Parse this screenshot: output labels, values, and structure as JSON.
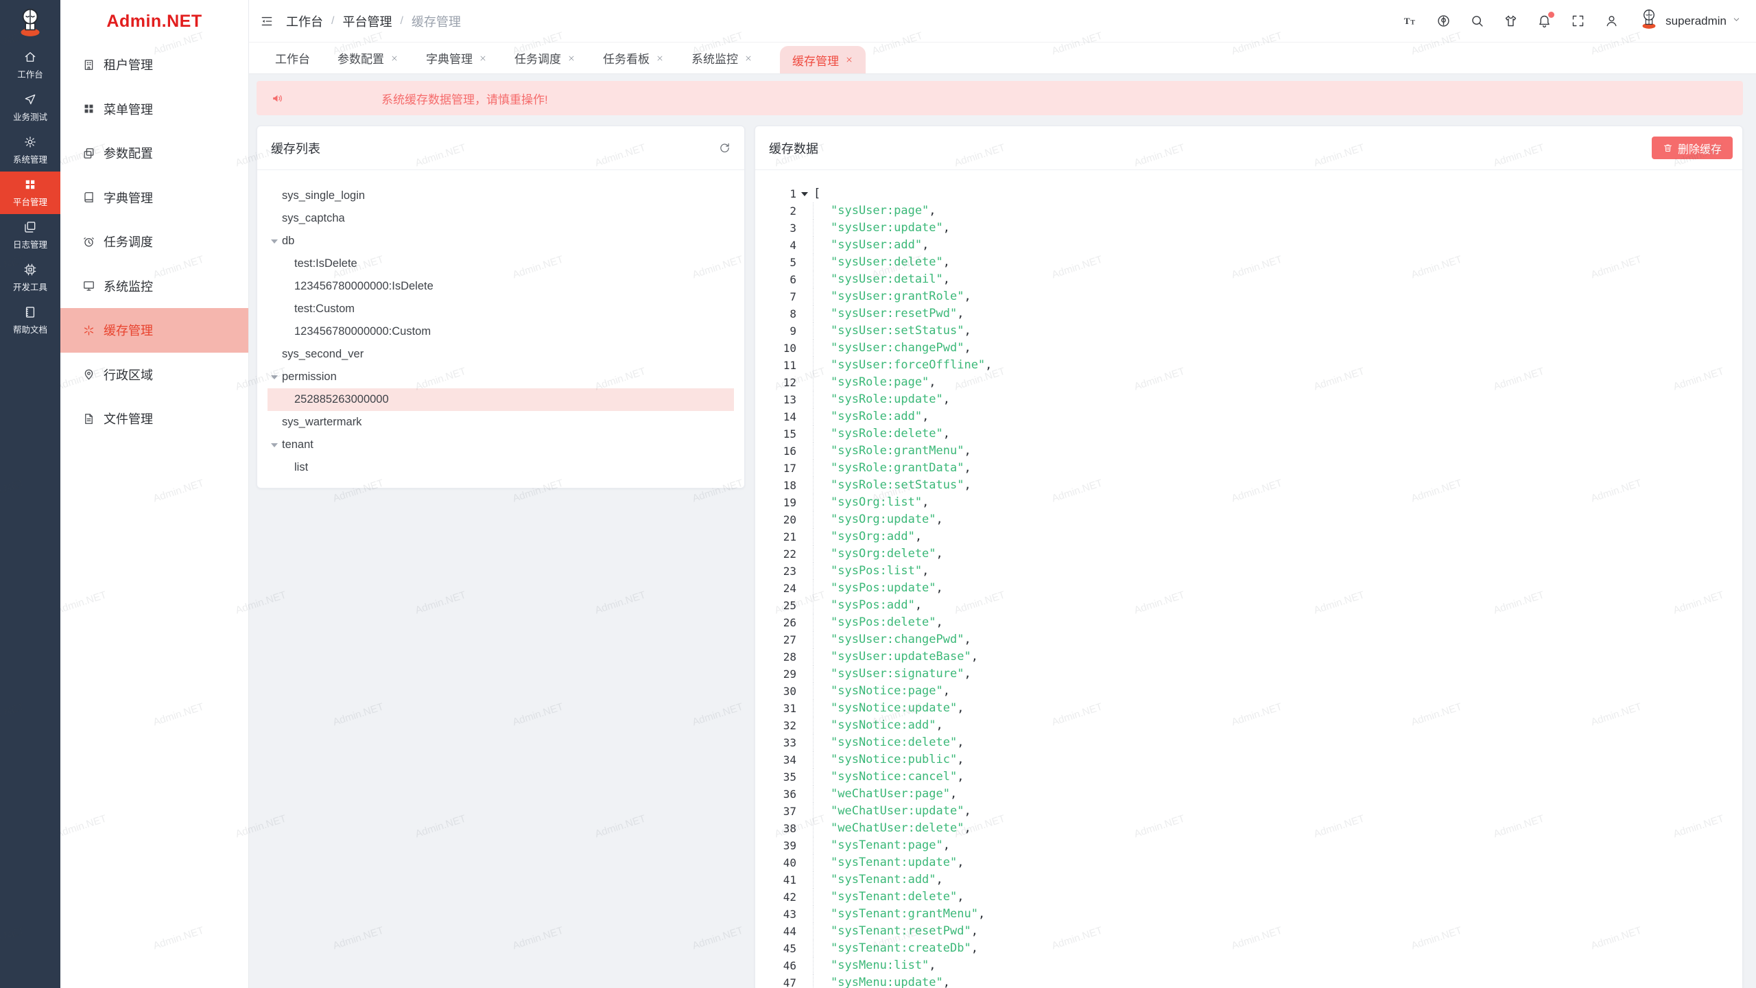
{
  "brand": {
    "logo_text": "Admin.NET"
  },
  "watermark": {
    "text": "Admin.NET"
  },
  "rail": {
    "items": [
      {
        "label": "工作台",
        "icon": "home",
        "active": false
      },
      {
        "label": "业务测试",
        "icon": "send",
        "active": false
      },
      {
        "label": "系统管理",
        "icon": "gear",
        "active": false
      },
      {
        "label": "平台管理",
        "icon": "grid",
        "active": true
      },
      {
        "label": "日志管理",
        "icon": "logs",
        "active": false
      },
      {
        "label": "开发工具",
        "icon": "cpu",
        "active": false
      },
      {
        "label": "帮助文档",
        "icon": "book",
        "active": false
      }
    ]
  },
  "menu": {
    "items": [
      {
        "label": "租户管理",
        "icon": "tenant",
        "active": false
      },
      {
        "label": "菜单管理",
        "icon": "menu",
        "active": false
      },
      {
        "label": "参数配置",
        "icon": "params",
        "active": false
      },
      {
        "label": "字典管理",
        "icon": "dict",
        "active": false
      },
      {
        "label": "任务调度",
        "icon": "schedule",
        "active": false
      },
      {
        "label": "系统监控",
        "icon": "monitor",
        "active": false
      },
      {
        "label": "缓存管理",
        "icon": "cache",
        "active": true
      },
      {
        "label": "行政区域",
        "icon": "region",
        "active": false
      },
      {
        "label": "文件管理",
        "icon": "file",
        "active": false
      }
    ]
  },
  "header": {
    "breadcrumb": [
      "工作台",
      "平台管理",
      "缓存管理"
    ],
    "breadcrumb_separator": "/",
    "tools": [
      {
        "icon": "font-size"
      },
      {
        "icon": "language"
      },
      {
        "icon": "search"
      },
      {
        "icon": "theme"
      },
      {
        "icon": "notification",
        "badge": true
      },
      {
        "icon": "fullscreen"
      },
      {
        "icon": "profile"
      }
    ],
    "username": "superadmin"
  },
  "tabs": [
    {
      "label": "工作台",
      "closable": false,
      "active": false
    },
    {
      "label": "参数配置",
      "closable": true,
      "active": false
    },
    {
      "label": "字典管理",
      "closable": true,
      "active": false
    },
    {
      "label": "任务调度",
      "closable": true,
      "active": false
    },
    {
      "label": "任务看板",
      "closable": true,
      "active": false
    },
    {
      "label": "系统监控",
      "closable": true,
      "active": false
    },
    {
      "label": "缓存管理",
      "closable": true,
      "active": true
    }
  ],
  "alert": {
    "text": "系统缓存数据管理，请慎重操作!"
  },
  "cache_list": {
    "title": "缓存列表",
    "tree": [
      {
        "label": "sys_single_login",
        "level": 1,
        "expandable": false,
        "selected": false
      },
      {
        "label": "sys_captcha",
        "level": 1,
        "expandable": false,
        "selected": false
      },
      {
        "label": "db",
        "level": 1,
        "expandable": true,
        "selected": false
      },
      {
        "label": "test:IsDelete",
        "level": 2,
        "expandable": false,
        "selected": false
      },
      {
        "label": "123456780000000:IsDelete",
        "level": 2,
        "expandable": false,
        "selected": false
      },
      {
        "label": "test:Custom",
        "level": 2,
        "expandable": false,
        "selected": false
      },
      {
        "label": "123456780000000:Custom",
        "level": 2,
        "expandable": false,
        "selected": false
      },
      {
        "label": "sys_second_ver",
        "level": 1,
        "expandable": false,
        "selected": false
      },
      {
        "label": "permission",
        "level": 1,
        "expandable": true,
        "selected": false
      },
      {
        "label": "252885263000000",
        "level": 2,
        "expandable": false,
        "selected": true
      },
      {
        "label": "sys_wartermark",
        "level": 1,
        "expandable": false,
        "selected": false
      },
      {
        "label": "tenant",
        "level": 1,
        "expandable": true,
        "selected": false
      },
      {
        "label": "list",
        "level": 2,
        "expandable": false,
        "selected": false
      }
    ]
  },
  "cache_data": {
    "title": "缓存数据",
    "delete_button": "删除缓存",
    "open_bracket": "[",
    "values": [
      "sysUser:page",
      "sysUser:update",
      "sysUser:add",
      "sysUser:delete",
      "sysUser:detail",
      "sysUser:grantRole",
      "sysUser:resetPwd",
      "sysUser:setStatus",
      "sysUser:changePwd",
      "sysUser:forceOffline",
      "sysRole:page",
      "sysRole:update",
      "sysRole:add",
      "sysRole:delete",
      "sysRole:grantMenu",
      "sysRole:grantData",
      "sysRole:setStatus",
      "sysOrg:list",
      "sysOrg:update",
      "sysOrg:add",
      "sysOrg:delete",
      "sysPos:list",
      "sysPos:update",
      "sysPos:add",
      "sysPos:delete",
      "sysUser:changePwd",
      "sysUser:updateBase",
      "sysUser:signature",
      "sysNotice:page",
      "sysNotice:update",
      "sysNotice:add",
      "sysNotice:delete",
      "sysNotice:public",
      "sysNotice:cancel",
      "weChatUser:page",
      "weChatUser:update",
      "weChatUser:delete",
      "sysTenant:page",
      "sysTenant:update",
      "sysTenant:add",
      "sysTenant:delete",
      "sysTenant:grantMenu",
      "sysTenant:resetPwd",
      "sysTenant:createDb",
      "sysMenu:list",
      "sysMenu:update"
    ]
  },
  "colors": {
    "primary": "#e8432e",
    "logo_red": "#e21e1e",
    "danger_soft": "#f56c6c",
    "alert_bg": "#fde2e2",
    "active_menu_bg": "#f5b6ae",
    "active_tab_bg": "#fadddd",
    "selected_node_bg": "#fbe3e1",
    "code_string_green": "#3bb878",
    "rail_bg": "#2d3a4d"
  }
}
